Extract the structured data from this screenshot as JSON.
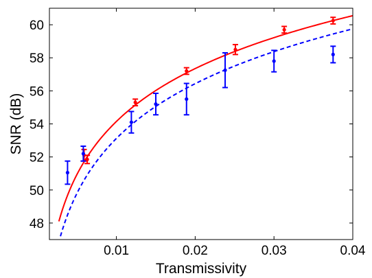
{
  "chart_data": {
    "type": "scatter",
    "title": "",
    "xlabel": "Transmissivity",
    "ylabel": "SNR (dB)",
    "xlim": [
      0.0015,
      0.04
    ],
    "ylim": [
      47,
      61
    ],
    "xticks": [
      0.01,
      0.02,
      0.03,
      0.04
    ],
    "xtick_labels": [
      "0.01",
      "0.02",
      "0.03",
      "0.04"
    ],
    "yticks": [
      48,
      50,
      52,
      54,
      56,
      58,
      60
    ],
    "ytick_labels": [
      "48",
      "50",
      "52",
      "54",
      "56",
      "58",
      "60"
    ],
    "grid": false,
    "legend": "none",
    "series": [
      {
        "color": "#ff0000",
        "marker": "dot",
        "points": [
          {
            "x": 0.0059,
            "y": 52.1,
            "err": 0.35
          },
          {
            "x": 0.0063,
            "y": 51.85,
            "err": 0.25
          },
          {
            "x": 0.0124,
            "y": 55.3,
            "err": 0.2
          },
          {
            "x": 0.0189,
            "y": 57.2,
            "err": 0.2
          },
          {
            "x": 0.0251,
            "y": 58.5,
            "err": 0.3
          },
          {
            "x": 0.0313,
            "y": 59.7,
            "err": 0.2
          },
          {
            "x": 0.0375,
            "y": 60.25,
            "err": 0.2
          }
        ]
      },
      {
        "color": "#0000ff",
        "marker": "dot",
        "points": [
          {
            "x": 0.0038,
            "y": 51.05,
            "err": 0.7
          },
          {
            "x": 0.0058,
            "y": 52.2,
            "err": 0.45
          },
          {
            "x": 0.0119,
            "y": 54.1,
            "err": 0.65
          },
          {
            "x": 0.015,
            "y": 55.2,
            "err": 0.65
          },
          {
            "x": 0.0189,
            "y": 55.5,
            "err": 0.95
          },
          {
            "x": 0.0238,
            "y": 57.25,
            "err": 1.05
          },
          {
            "x": 0.03,
            "y": 57.8,
            "err": 0.65
          },
          {
            "x": 0.0375,
            "y": 58.2,
            "err": 0.5
          }
        ]
      }
    ],
    "fits": [
      {
        "color": "#ff0000",
        "style": "solid",
        "x_start": 0.0027,
        "x_end": 0.04,
        "points": [
          {
            "x": 0.0027,
            "y": 48.1
          },
          {
            "x": 0.01,
            "y": 54.3
          },
          {
            "x": 0.02,
            "y": 57.45
          },
          {
            "x": 0.03,
            "y": 59.2
          },
          {
            "x": 0.04,
            "y": 60.55
          }
        ]
      },
      {
        "color": "#0000ff",
        "style": "dashed",
        "x_start": 0.0029,
        "x_end": 0.04,
        "points": [
          {
            "x": 0.0029,
            "y": 47.2
          },
          {
            "x": 0.01,
            "y": 53.4
          },
          {
            "x": 0.02,
            "y": 56.6
          },
          {
            "x": 0.03,
            "y": 58.45
          },
          {
            "x": 0.04,
            "y": 59.75
          }
        ]
      }
    ]
  }
}
